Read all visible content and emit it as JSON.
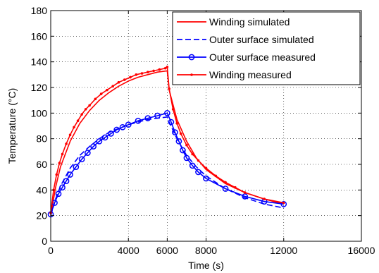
{
  "chart_data": {
    "type": "line",
    "xlabel": "Time (s)",
    "ylabel": "Temperature (°C)",
    "xlim": [
      0,
      16000
    ],
    "ylim": [
      0,
      180
    ],
    "xticks": [
      0,
      4000,
      6000,
      8000,
      12000,
      16000
    ],
    "yticks": [
      0,
      20,
      40,
      60,
      80,
      100,
      120,
      140,
      160,
      180
    ],
    "xtick_labels": [
      "0",
      "4000",
      "6000",
      "8000",
      "12000",
      "16000"
    ],
    "ytick_labels": [
      "0",
      "20",
      "40",
      "60",
      "80",
      "100",
      "120",
      "140",
      "160",
      "180"
    ],
    "grid": "dotted",
    "legend_position": "top-right",
    "series": [
      {
        "name": "Winding simulated",
        "color": "#ff0000",
        "style": "solid",
        "marker": "none",
        "x": [
          0,
          250,
          500,
          1000,
          1500,
          2000,
          2500,
          3000,
          3500,
          4000,
          4500,
          5000,
          5500,
          6000,
          6100,
          6500,
          7000,
          7500,
          8000,
          9000,
          10000,
          11000,
          12000
        ],
        "y": [
          20,
          42,
          58,
          78,
          92,
          102,
          110,
          116,
          121,
          125,
          128,
          130,
          132,
          133,
          118,
          95,
          78,
          65,
          56,
          45,
          38,
          33,
          29
        ]
      },
      {
        "name": "Outer surface simulated",
        "color": "#0000ff",
        "style": "dashed",
        "marker": "none",
        "x": [
          0,
          250,
          500,
          1000,
          1500,
          2000,
          2500,
          3000,
          3500,
          4000,
          4500,
          5000,
          5500,
          6000,
          6100,
          6500,
          7000,
          7500,
          8000,
          9000,
          10000,
          11000,
          12000
        ],
        "y": [
          20,
          33,
          43,
          57,
          67,
          74,
          80,
          85,
          88,
          91,
          93,
          95,
          96,
          97,
          93,
          80,
          67,
          58,
          51,
          41,
          34,
          29,
          26
        ]
      },
      {
        "name": "Outer surface measured",
        "color": "#0000ff",
        "style": "solid",
        "marker": "circle",
        "x": [
          0,
          200,
          400,
          600,
          800,
          1000,
          1300,
          1600,
          1900,
          2200,
          2500,
          2800,
          3100,
          3400,
          3700,
          4000,
          4500,
          5000,
          5500,
          6000,
          6200,
          6400,
          6600,
          6800,
          7000,
          7300,
          7600,
          8000,
          9000,
          10000,
          11000,
          12000
        ],
        "y": [
          21,
          30,
          37,
          42,
          47,
          52,
          58,
          64,
          69,
          74,
          78,
          81,
          84,
          87,
          89,
          91,
          94,
          96,
          98,
          100,
          93,
          85,
          78,
          71,
          65,
          59,
          54,
          49,
          41,
          35,
          31,
          29
        ]
      },
      {
        "name": "Winding measured",
        "color": "#ff0000",
        "style": "solid",
        "marker": "dot",
        "x": [
          0,
          150,
          300,
          450,
          600,
          800,
          1000,
          1200,
          1400,
          1600,
          1800,
          2000,
          2300,
          2600,
          2900,
          3200,
          3500,
          3800,
          4100,
          4400,
          4700,
          5000,
          5300,
          5600,
          5900,
          6000,
          6100,
          6300,
          6500,
          6700,
          7000,
          7300,
          7600,
          8000,
          8500,
          9000,
          9500,
          10000,
          11000,
          12000
        ],
        "y": [
          22,
          40,
          52,
          61,
          68,
          76,
          83,
          89,
          94,
          99,
          103,
          106,
          111,
          115,
          118,
          121,
          124,
          126,
          128,
          130,
          131,
          132,
          133,
          134,
          135,
          136,
          119,
          103,
          92,
          84,
          75,
          68,
          63,
          57,
          51,
          46,
          42,
          38,
          33,
          30
        ]
      }
    ]
  }
}
